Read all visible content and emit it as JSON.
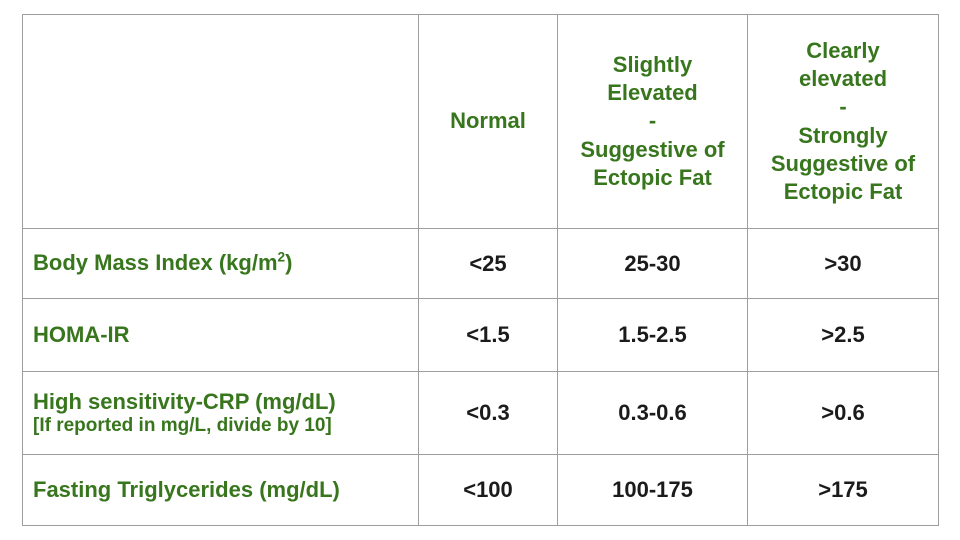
{
  "page": {
    "background": "#ffffff"
  },
  "table": {
    "border_color": "#9e9e9e",
    "heading_color": "#38761d",
    "value_color": "#1b1b1b",
    "columns": {
      "metric": "",
      "normal": "Normal",
      "slightly_elevated": "Slightly\nElevated\n-\nSuggestive of\nEctopic Fat",
      "clearly_elevated": "Clearly\nelevated\n-\nStrongly\nSuggestive of\nEctopic Fat"
    },
    "rows": [
      {
        "label_prefix": "Body Mass Index (kg/m",
        "label_sup": "2",
        "label_suffix": ")",
        "values": [
          "<25",
          "25-30",
          ">30"
        ]
      },
      {
        "label": "HOMA-IR",
        "values": [
          "<1.5",
          "1.5-2.5",
          ">2.5"
        ]
      },
      {
        "label": "High sensitivity-CRP (mg/dL)",
        "note": "[If reported in mg/L, divide by 10]",
        "values": [
          "<0.3",
          "0.3-0.6",
          ">0.6"
        ]
      },
      {
        "label": "Fasting Triglycerides (mg/dL)",
        "values": [
          "<100",
          "100-175",
          ">175"
        ]
      }
    ]
  }
}
